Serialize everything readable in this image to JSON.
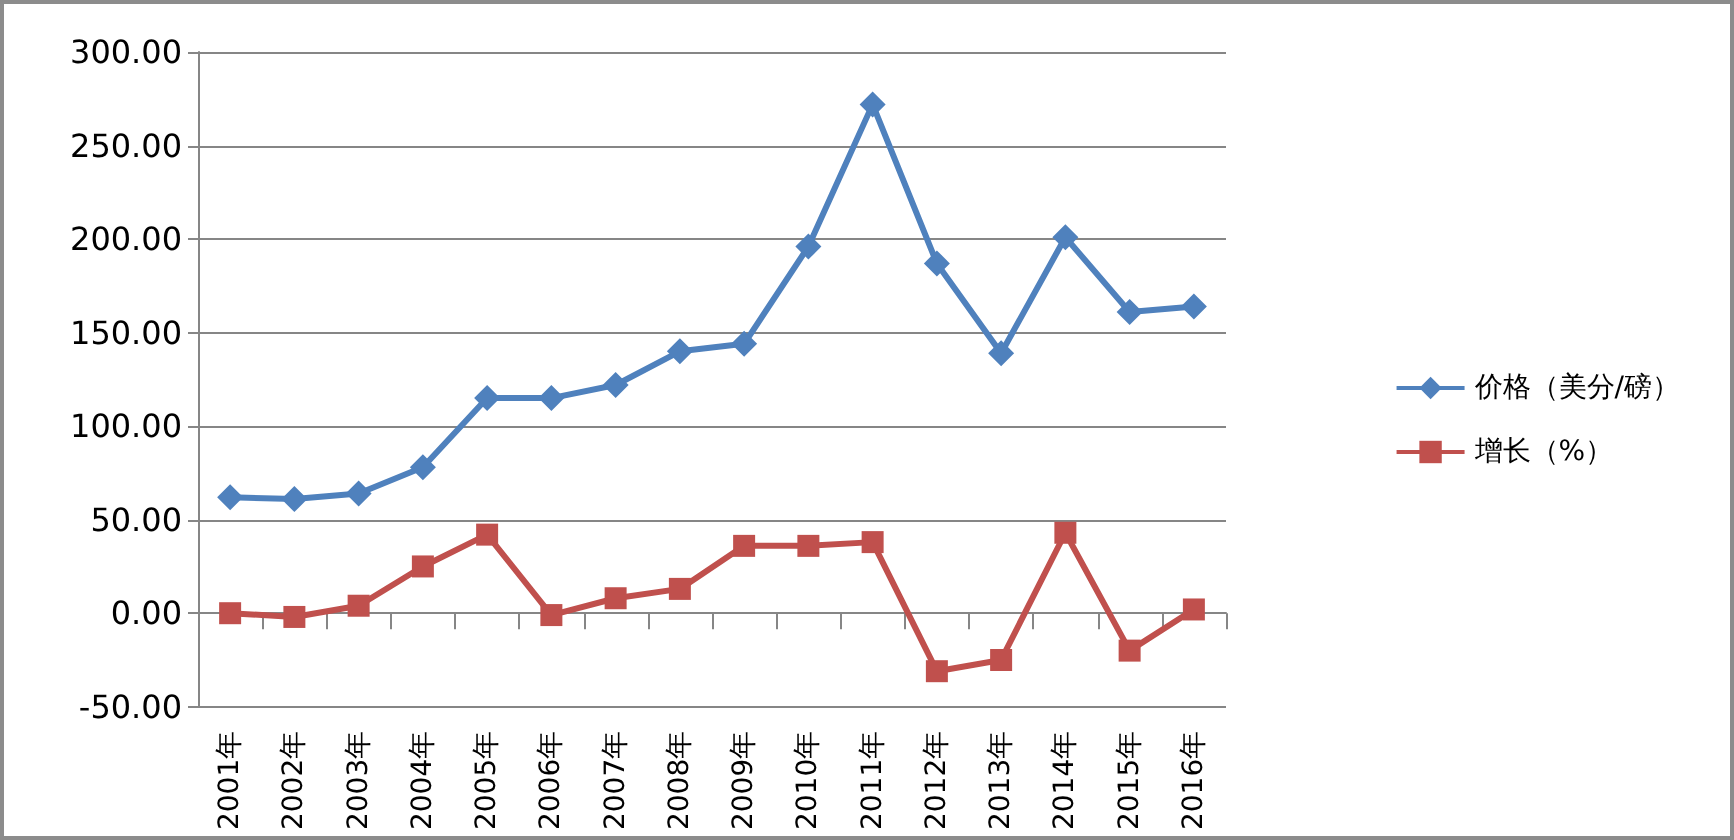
{
  "chart_data": {
    "type": "line",
    "categories": [
      "2001年",
      "2002年",
      "2003年",
      "2004年",
      "2005年",
      "2006年",
      "2007年",
      "2008年",
      "2009年",
      "2010年",
      "2011年",
      "2012年",
      "2013年",
      "2014年",
      "2015年",
      "2016年"
    ],
    "series": [
      {
        "name": "价格（美分/磅）",
        "color": "#4f81bd",
        "marker": "diamond",
        "values": [
          62,
          61,
          64,
          78,
          115,
          115,
          122,
          140,
          144,
          196,
          272,
          187,
          139,
          201,
          161,
          164
        ]
      },
      {
        "name": "增长（%）",
        "color": "#c0504d",
        "marker": "square",
        "values": [
          0,
          -2,
          4,
          25,
          42,
          -1,
          8,
          13,
          36,
          36,
          38,
          -31,
          -25,
          43,
          -20,
          2
        ]
      }
    ],
    "ylim": [
      -50,
      300
    ],
    "yticks": [
      {
        "value": -50,
        "label": "-50.00"
      },
      {
        "value": 0,
        "label": "0.00"
      },
      {
        "value": 50,
        "label": "50.00"
      },
      {
        "value": 100,
        "label": "100.00"
      },
      {
        "value": 150,
        "label": "150.00"
      },
      {
        "value": 200,
        "label": "200.00"
      },
      {
        "value": 250,
        "label": "250.00"
      },
      {
        "value": 300,
        "label": "300.00"
      }
    ],
    "grid": "y",
    "legend": "right",
    "line_style": "solid"
  }
}
